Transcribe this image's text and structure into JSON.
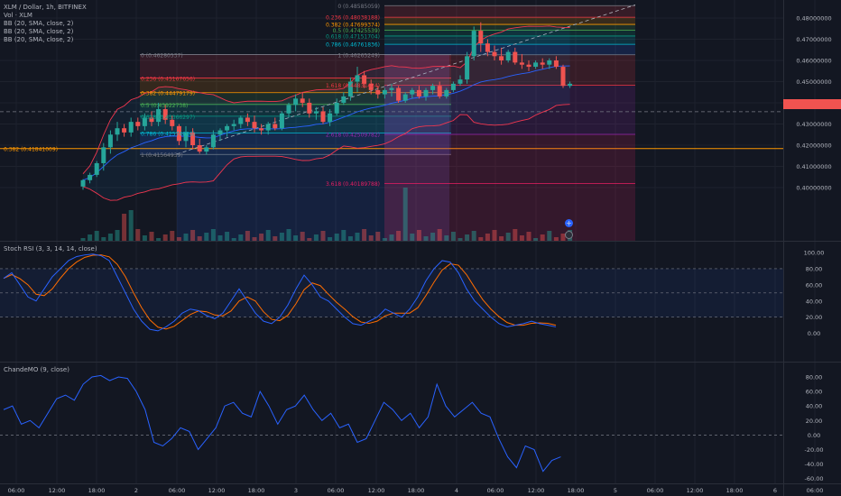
{
  "legend": {
    "symbol_line": "XLM / Dollar, 1h, BITFINEX",
    "vol_line": "Vol · XLM",
    "bb_lines": [
      "BB (20, SMA, close, 2)",
      "BB (20, SMA, close, 2)",
      "BB (20, SMA, close, 2)"
    ],
    "rsi_label": "Stoch RSI (3, 3, 14, 14, close)",
    "cmo_label": "ChandeMO (9, close)"
  },
  "colors": {
    "background": "#131722",
    "grid": "#1e222d",
    "up_candle": "#26a69a",
    "down_candle": "#ef5350",
    "bb_band": "#f2364f",
    "bb_basis": "#2962ff",
    "fib_current_price": "#f05350",
    "stoch_k": "#2962ff",
    "stoch_d": "#ff6d00",
    "cmo_line": "#2962ff",
    "fib_382_label": "#ff9800"
  },
  "price_axis": {
    "labels": [
      "0.48000000",
      "0.47000000",
      "0.46000000",
      "0.45000000",
      "0.44000000",
      "0.43000000",
      "0.42000000",
      "0.41000000",
      "0.40000000"
    ],
    "values": [
      0.48,
      0.47,
      0.46,
      0.45,
      0.44,
      0.43,
      0.42,
      0.41,
      0.4
    ]
  },
  "rsi_axis": {
    "labels": [
      "100.00",
      "80.00",
      "60.00",
      "40.00",
      "20.00",
      "0.00"
    ],
    "values": [
      100,
      80,
      60,
      40,
      20,
      0
    ]
  },
  "cmo_axis": {
    "labels": [
      "80.00",
      "60.00",
      "40.00",
      "20.00",
      "0.00",
      "-20.00",
      "-40.00",
      "-60.00"
    ],
    "values": [
      80,
      60,
      40,
      20,
      0,
      -20,
      -40,
      -60
    ]
  },
  "time_axis": [
    {
      "label": "06:00",
      "x": 18
    },
    {
      "label": "12:00",
      "x": 63
    },
    {
      "label": "18:00",
      "x": 107
    },
    {
      "label": "2",
      "x": 151
    },
    {
      "label": "06:00",
      "x": 196
    },
    {
      "label": "12:00",
      "x": 240
    },
    {
      "label": "18:00",
      "x": 284
    },
    {
      "label": "3",
      "x": 328
    },
    {
      "label": "06:00",
      "x": 372
    },
    {
      "label": "12:00",
      "x": 417
    },
    {
      "label": "18:00",
      "x": 461
    },
    {
      "label": "4",
      "x": 506
    },
    {
      "label": "06:00",
      "x": 549
    },
    {
      "label": "12:00",
      "x": 594
    },
    {
      "label": "18:00",
      "x": 638
    },
    {
      "label": "5",
      "x": 682
    },
    {
      "label": "06:00",
      "x": 726
    },
    {
      "label": "12:00",
      "x": 770
    },
    {
      "label": "18:00",
      "x": 814
    },
    {
      "label": "6",
      "x": 859
    },
    {
      "label": "06:00",
      "x": 903
    }
  ],
  "fib_left": [
    {
      "label": "0 (0.46280537)",
      "price": 0.4628,
      "color": "#787b86"
    },
    {
      "label": "0.236 (0.45167656)",
      "price": 0.45168,
      "color": "#f23645"
    },
    {
      "label": "0.382 (0.44479179)",
      "price": 0.44479,
      "color": "#ff9800"
    },
    {
      "label": "0.5 (0.43922738)",
      "price": 0.43923,
      "color": "#4caf50"
    },
    {
      "label": "0.618 (0.43366297)",
      "price": 0.43366,
      "color": "#089981"
    },
    {
      "label": "0.786 (0.42574030)",
      "price": 0.42574,
      "color": "#00bcd4"
    },
    {
      "label": "1 (0.41564939)",
      "price": 0.41565,
      "color": "#787b86"
    },
    {
      "label": "0.382 (0.41841009)",
      "price": 0.41841,
      "color": "#ff9800"
    }
  ],
  "fib_right": [
    {
      "label": "0 (0.48585059)",
      "price": 0.48585,
      "color": "#787b86"
    },
    {
      "label": "0.236 (0.48038188)",
      "price": 0.48038,
      "color": "#f23645"
    },
    {
      "label": "0.382 (0.47699374)",
      "price": 0.47699,
      "color": "#ff9800"
    },
    {
      "label": "0.5 (0.47425539)",
      "price": 0.47426,
      "color": "#4caf50"
    },
    {
      "label": "0.618 (0.47151704)",
      "price": 0.47152,
      "color": "#089981"
    },
    {
      "label": "0.786 (0.46761836)",
      "price": 0.46762,
      "color": "#00bcd4"
    },
    {
      "label": "1 (0.46265249)",
      "price": 0.46265,
      "color": "#787b86"
    },
    {
      "label": "1.618 (0.44831424)",
      "price": 0.44831,
      "color": "#f23645"
    },
    {
      "label": "2.618 (0.42509782)",
      "price": 0.4251,
      "color": "#9c27b0"
    },
    {
      "label": "3.618 (0.40189788)",
      "price": 0.4019,
      "color": "#e91e63"
    }
  ]
}
